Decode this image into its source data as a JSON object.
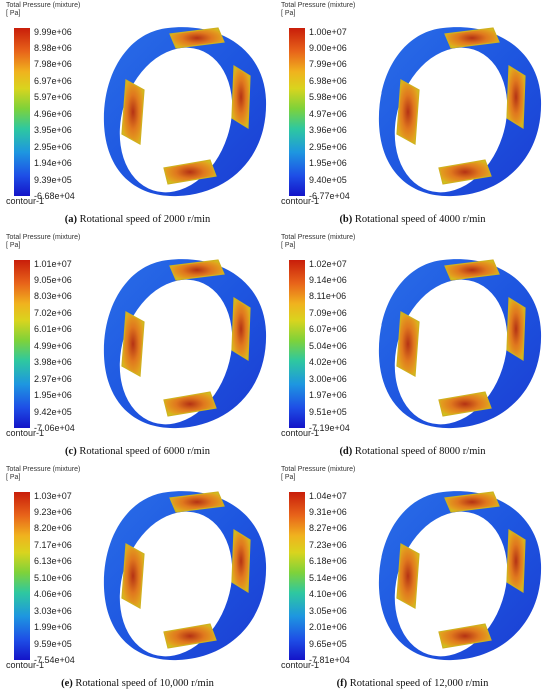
{
  "panels": [
    {
      "legend_title": "Total Pressure (mixture)",
      "legend_unit": "[ Pa]",
      "ticks": [
        "9.99e+06",
        "8.98e+06",
        "7.98e+06",
        "6.97e+06",
        "5.97e+06",
        "4.96e+06",
        "3.95e+06",
        "2.95e+06",
        "1.94e+06",
        "9.39e+05",
        "-6.68e+04"
      ],
      "legend_name": "contour-1",
      "caption_label": "(a)",
      "caption_text": " Rotational speed of 2000 r/min"
    },
    {
      "legend_title": "Total Pressure (mixture)",
      "legend_unit": "[ Pa]",
      "ticks": [
        "1.00e+07",
        "9.00e+06",
        "7.99e+06",
        "6.98e+06",
        "5.98e+06",
        "4.97e+06",
        "3.96e+06",
        "2.95e+06",
        "1.95e+06",
        "9.40e+05",
        "-6.77e+04"
      ],
      "legend_name": "contour-1",
      "caption_label": "(b)",
      "caption_text": " Rotational speed of 4000 r/min"
    },
    {
      "legend_title": "Total Pressure (mixture)",
      "legend_unit": "[ Pa]",
      "ticks": [
        "1.01e+07",
        "9.05e+06",
        "8.03e+06",
        "7.02e+06",
        "6.01e+06",
        "4.99e+06",
        "3.98e+06",
        "2.97e+06",
        "1.95e+06",
        "9.42e+05",
        "-7.06e+04"
      ],
      "legend_name": "contour-1",
      "caption_label": "(c)",
      "caption_text": " Rotational speed of 6000 r/min"
    },
    {
      "legend_title": "Total Pressure (mixture)",
      "legend_unit": "[ Pa]",
      "ticks": [
        "1.02e+07",
        "9.14e+06",
        "8.11e+06",
        "7.09e+06",
        "6.07e+06",
        "5.04e+06",
        "4.02e+06",
        "3.00e+06",
        "1.97e+06",
        "9.51e+05",
        "-7.19e+04"
      ],
      "legend_name": "contour-1",
      "caption_label": "(d)",
      "caption_text": " Rotational speed of 8000 r/min"
    },
    {
      "legend_title": "Total Pressure (mixture)",
      "legend_unit": "[ Pa]",
      "ticks": [
        "1.03e+07",
        "9.23e+06",
        "8.20e+06",
        "7.17e+06",
        "6.13e+06",
        "5.10e+06",
        "4.06e+06",
        "3.03e+06",
        "1.99e+06",
        "9.59e+05",
        "-7.54e+04"
      ],
      "legend_name": "contour-1",
      "caption_label": "(e)",
      "caption_text": " Rotational speed of 10,000 r/min"
    },
    {
      "legend_title": "Total Pressure (mixture)",
      "legend_unit": "[ Pa]",
      "ticks": [
        "1.04e+07",
        "9.31e+06",
        "8.27e+06",
        "7.23e+06",
        "6.18e+06",
        "5.14e+06",
        "4.10e+06",
        "3.05e+06",
        "2.01e+06",
        "9.65e+05",
        "-7.81e+04"
      ],
      "legend_name": "contour-1",
      "caption_label": "(f)",
      "caption_text": " Rotational speed of 12,000 r/min"
    }
  ]
}
